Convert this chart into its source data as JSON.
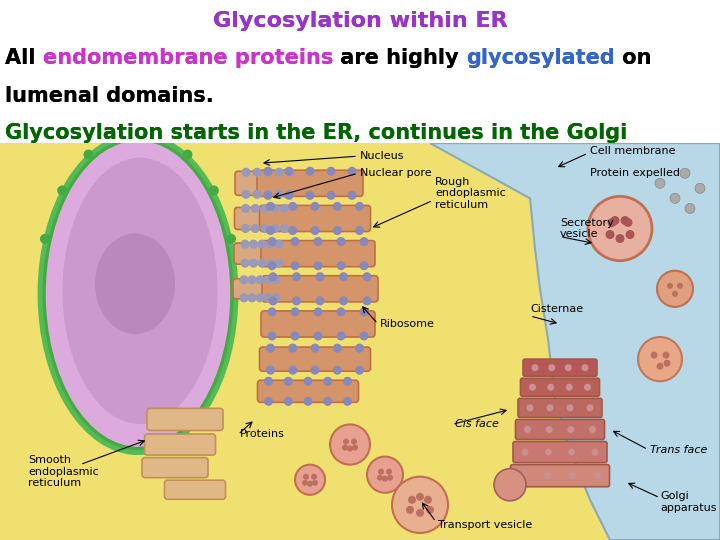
{
  "title": "Glycosylation within ER",
  "title_color": "#9933CC",
  "title_fontsize": 16,
  "line1_segments": [
    {
      "text": "All ",
      "color": "#000000",
      "bold": true
    },
    {
      "text": "endomembrane proteins",
      "color": "#CC33CC",
      "bold": true
    },
    {
      "text": " are highly ",
      "color": "#000000",
      "bold": true
    },
    {
      "text": "glycosylated",
      "color": "#3366CC",
      "bold": true
    },
    {
      "text": " on",
      "color": "#000000",
      "bold": true
    }
  ],
  "line2_segments": [
    {
      "text": "lumenal domains.",
      "color": "#000000",
      "bold": true
    }
  ],
  "line3_segments": [
    {
      "text": "Glycosylation starts in the ER, continues in the Golgi",
      "color": "#006600",
      "bold": true
    }
  ],
  "text_fontsize": 15,
  "line3_fontsize": 15,
  "background_color": "#FFFFFF",
  "figure_width": 7.2,
  "figure_height": 5.4,
  "diagram_bg": "#F0E070",
  "cell_mem_color": "#ADD8E6",
  "nucleus_color": "#CC99CC",
  "nucleus_edge": "#44AA44",
  "er_color": "#D4956A",
  "golgi_color": "#C87870",
  "vesicle_color": "#E8A090",
  "ribosome_color": "#8888BB"
}
